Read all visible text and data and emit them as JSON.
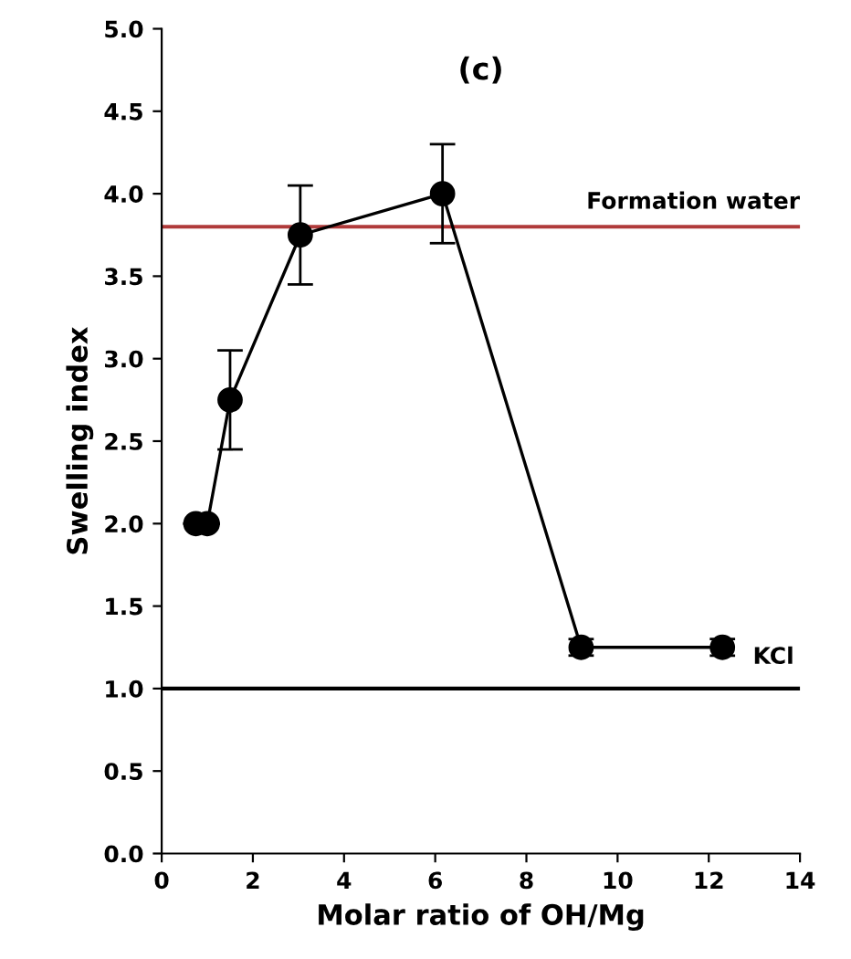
{
  "chart_data": {
    "type": "line",
    "title": "(c)",
    "xlabel": "Molar ratio of OH/Mg",
    "ylabel": "Swelling index",
    "x": [
      0.75,
      1.0,
      1.5,
      3.04,
      6.16,
      9.2,
      12.3
    ],
    "series": [
      {
        "color": "#000000",
        "values": [
          2.0,
          2.0,
          2.75,
          3.75,
          4.0,
          1.25,
          1.25
        ],
        "errors": [
          null,
          null,
          0.3,
          0.3,
          0.3,
          0.05,
          0.05
        ]
      }
    ],
    "xlim": [
      0,
      14
    ],
    "xticks": [
      0,
      2,
      4,
      6,
      8,
      10,
      12,
      14
    ],
    "ylim": [
      0,
      5
    ],
    "yticks": [
      {
        "value": 0,
        "label": "0.0"
      },
      {
        "value": 0.5,
        "label": "0.5"
      },
      {
        "value": 1,
        "label": "1.0"
      },
      {
        "value": 1.5,
        "label": "1.5"
      },
      {
        "value": 2,
        "label": "2.0"
      },
      {
        "value": 2.5,
        "label": "2.5"
      },
      {
        "value": 3,
        "label": "3.0"
      },
      {
        "value": 3.5,
        "label": "3.5"
      },
      {
        "value": 4,
        "label": "4.0"
      },
      {
        "value": 4.5,
        "label": "4.5"
      },
      {
        "value": 5,
        "label": "5.0"
      }
    ],
    "ref_lines": [
      {
        "axis": "y",
        "value": 3.8,
        "label": "Formation water",
        "color": "#b03a3a"
      },
      {
        "axis": "y",
        "value": 1.0,
        "label": null,
        "color": "#000000"
      }
    ],
    "annotations": [
      {
        "text": "KCl",
        "x": 12.3,
        "y": 1.25
      }
    ],
    "marker": "circle",
    "line_style": "solid",
    "grid": false,
    "legend": false
  }
}
